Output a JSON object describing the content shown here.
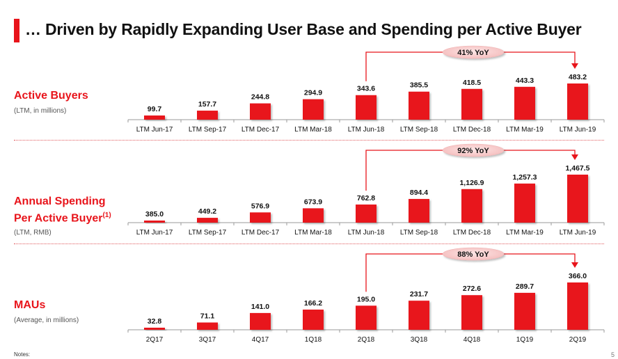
{
  "page": {
    "title": "… Driven by Rapidly Expanding User Base and Spending per Active Buyer",
    "notes_label": "Notes:",
    "page_number": "5",
    "accent_color": "#e8141b"
  },
  "sections": [
    {
      "title": "Active Buyers",
      "title_sup": "",
      "subtitle": "(LTM, in millions)"
    },
    {
      "title": "Annual Spending Per Active Buyer",
      "title_line1": "Annual Spending",
      "title_line2": "Per Active Buyer",
      "title_sup": "(1)",
      "subtitle": "(LTM, RMB)"
    },
    {
      "title": "MAUs",
      "title_sup": "",
      "subtitle": "(Average, in millions)"
    }
  ],
  "chart_data": [
    {
      "type": "bar",
      "title": "Active Buyers",
      "subtitle": "(LTM, in millions)",
      "categories": [
        "LTM Jun-17",
        "LTM Sep-17",
        "LTM Dec-17",
        "LTM Mar-18",
        "LTM Jun-18",
        "LTM Sep-18",
        "LTM Dec-18",
        "LTM Mar-19",
        "LTM Jun-19"
      ],
      "values": [
        99.7,
        157.7,
        244.8,
        294.9,
        343.6,
        385.5,
        418.5,
        443.3,
        483.2
      ],
      "value_labels": [
        "99.7",
        "157.7",
        "244.8",
        "294.9",
        "343.6",
        "385.5",
        "418.5",
        "443.3",
        "483.2"
      ],
      "annotation": {
        "text": "41% YoY",
        "from": "LTM Jun-18",
        "to": "LTM Jun-19"
      },
      "xlabel": "",
      "ylabel": "",
      "grid": false,
      "legend": "none"
    },
    {
      "type": "bar",
      "title": "Annual Spending Per Active Buyer(1)",
      "subtitle": "(LTM, RMB)",
      "categories": [
        "LTM Jun-17",
        "LTM Sep-17",
        "LTM Dec-17",
        "LTM Mar-18",
        "LTM Jun-18",
        "LTM Sep-18",
        "LTM Dec-18",
        "LTM Mar-19",
        "LTM Jun-19"
      ],
      "values": [
        385.0,
        449.2,
        576.9,
        673.9,
        762.8,
        894.4,
        1126.9,
        1257.3,
        1467.5
      ],
      "value_labels": [
        "385.0",
        "449.2",
        "576.9",
        "673.9",
        "762.8",
        "894.4",
        "1,126.9",
        "1,257.3",
        "1,467.5"
      ],
      "annotation": {
        "text": "92% YoY",
        "from": "LTM Jun-18",
        "to": "LTM Jun-19"
      },
      "xlabel": "",
      "ylabel": "",
      "grid": false,
      "legend": "none"
    },
    {
      "type": "bar",
      "title": "MAUs",
      "subtitle": "(Average, in millions)",
      "categories": [
        "2Q17",
        "3Q17",
        "4Q17",
        "1Q18",
        "2Q18",
        "3Q18",
        "4Q18",
        "1Q19",
        "2Q19"
      ],
      "values": [
        32.8,
        71.1,
        141.0,
        166.2,
        195.0,
        231.7,
        272.6,
        289.7,
        366.0
      ],
      "value_labels": [
        "32.8",
        "71.1",
        "141.0",
        "166.2",
        "195.0",
        "231.7",
        "272.6",
        "289.7",
        "366.0"
      ],
      "annotation": {
        "text": "88% YoY",
        "from": "2Q18",
        "to": "2Q19"
      },
      "xlabel": "",
      "ylabel": "",
      "grid": false,
      "legend": "none"
    }
  ]
}
